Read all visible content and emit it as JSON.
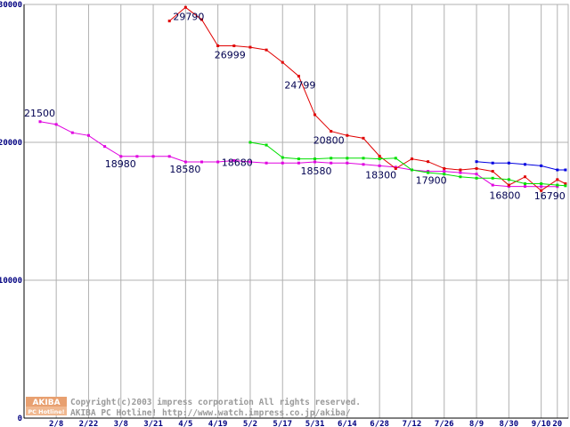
{
  "chart_data": {
    "type": "line",
    "title": "",
    "xlabel": "",
    "ylabel": "",
    "ylim": [
      0,
      30000
    ],
    "grid": true,
    "y_ticks": [
      0,
      10000,
      20000,
      30000
    ],
    "y_tick_labels": [
      "0",
      "10000",
      "20000",
      "30000"
    ],
    "x_tick_labels": [
      "2/8",
      "2/22",
      "3/8",
      "3/21",
      "4/5",
      "4/19",
      "5/2",
      "5/17",
      "5/31",
      "6/14",
      "6/28",
      "7/12",
      "7/26",
      "8/9",
      "8/30",
      "9/10",
      "20"
    ],
    "x_tick_positions": [
      1,
      3,
      5,
      7,
      9,
      11,
      13,
      15,
      17,
      19,
      21,
      23,
      25,
      27,
      29,
      31,
      32
    ],
    "x_max": 32.5,
    "series": [
      {
        "name": "magenta",
        "color": "#e000e0",
        "points": [
          [
            0,
            21500
          ],
          [
            1,
            21300
          ],
          [
            2,
            20700
          ],
          [
            3,
            20500
          ],
          [
            4,
            19700
          ],
          [
            5,
            18980
          ],
          [
            6,
            18980
          ],
          [
            7,
            18980
          ],
          [
            8,
            18980
          ],
          [
            9,
            18580
          ],
          [
            10,
            18580
          ],
          [
            11,
            18580
          ],
          [
            12,
            18680
          ],
          [
            13,
            18580
          ],
          [
            14,
            18500
          ],
          [
            15,
            18500
          ],
          [
            16,
            18500
          ],
          [
            17,
            18580
          ],
          [
            18,
            18500
          ],
          [
            19,
            18500
          ],
          [
            20,
            18400
          ],
          [
            21,
            18300
          ],
          [
            22,
            18200
          ],
          [
            23,
            18000
          ],
          [
            24,
            17900
          ],
          [
            25,
            17900
          ],
          [
            26,
            17800
          ],
          [
            27,
            17700
          ],
          [
            28,
            16900
          ],
          [
            29,
            16800
          ],
          [
            30,
            16800
          ],
          [
            31,
            16790
          ],
          [
            32,
            16790
          ]
        ]
      },
      {
        "name": "red",
        "color": "#e00000",
        "points": [
          [
            8,
            28800
          ],
          [
            9,
            29790
          ],
          [
            10,
            28900
          ],
          [
            11,
            27000
          ],
          [
            12,
            26999
          ],
          [
            13,
            26900
          ],
          [
            14,
            26700
          ],
          [
            15,
            25800
          ],
          [
            16,
            24799
          ],
          [
            17,
            22000
          ],
          [
            18,
            20800
          ],
          [
            19,
            20500
          ],
          [
            20,
            20300
          ],
          [
            21,
            19000
          ],
          [
            22,
            18100
          ],
          [
            23,
            18800
          ],
          [
            24,
            18600
          ],
          [
            25,
            18100
          ],
          [
            26,
            18000
          ],
          [
            27,
            18100
          ],
          [
            28,
            17900
          ],
          [
            29,
            16900
          ],
          [
            30,
            17500
          ],
          [
            31,
            16500
          ],
          [
            32,
            17300
          ],
          [
            32.5,
            17000
          ]
        ]
      },
      {
        "name": "green",
        "color": "#00e000",
        "points": [
          [
            13,
            20000
          ],
          [
            14,
            19800
          ],
          [
            15,
            18900
          ],
          [
            16,
            18800
          ],
          [
            17,
            18800
          ],
          [
            18,
            18850
          ],
          [
            19,
            18850
          ],
          [
            20,
            18850
          ],
          [
            21,
            18800
          ],
          [
            22,
            18850
          ],
          [
            23,
            18000
          ],
          [
            24,
            17800
          ],
          [
            25,
            17700
          ],
          [
            26,
            17500
          ],
          [
            27,
            17400
          ],
          [
            28,
            17400
          ],
          [
            29,
            17300
          ],
          [
            30,
            17000
          ],
          [
            31,
            17000
          ],
          [
            32,
            16900
          ],
          [
            32.5,
            16850
          ]
        ]
      },
      {
        "name": "blue",
        "color": "#0000e0",
        "points": [
          [
            27,
            18600
          ],
          [
            28,
            18500
          ],
          [
            29,
            18500
          ],
          [
            30,
            18400
          ],
          [
            31,
            18300
          ],
          [
            32,
            18000
          ],
          [
            32.5,
            18000
          ]
        ]
      }
    ],
    "data_labels": [
      {
        "text": "21500",
        "x": 0,
        "y": 21500
      },
      {
        "text": "18980",
        "x": 5,
        "y": 18980
      },
      {
        "text": "18580",
        "x": 9,
        "y": 18580
      },
      {
        "text": "29790",
        "x": 9,
        "y": 29790
      },
      {
        "text": "26999",
        "x": 12,
        "y": 26999
      },
      {
        "text": "18680",
        "x": 12,
        "y": 18680
      },
      {
        "text": "24799",
        "x": 16,
        "y": 24799
      },
      {
        "text": "18580",
        "x": 17,
        "y": 18580
      },
      {
        "text": "20800",
        "x": 18,
        "y": 20800
      },
      {
        "text": "18300",
        "x": 21,
        "y": 18300
      },
      {
        "text": "17900",
        "x": 24,
        "y": 17900
      },
      {
        "text": "16800",
        "x": 29,
        "y": 16800
      },
      {
        "text": "16790",
        "x": 32,
        "y": 16790
      }
    ]
  },
  "watermark": {
    "logo_top": "AKIBA",
    "logo_bottom": "PC Hotline!",
    "line1": "Copyright(c)2003 impress corporation All rights reserved.",
    "line2": "AKIBA PC Hotline!  http://www.watch.impress.co.jp/akiba/"
  },
  "colors": {
    "grid": "#b0b0b0",
    "axis_text": "#000080",
    "logo_bg": "#e8a070"
  }
}
